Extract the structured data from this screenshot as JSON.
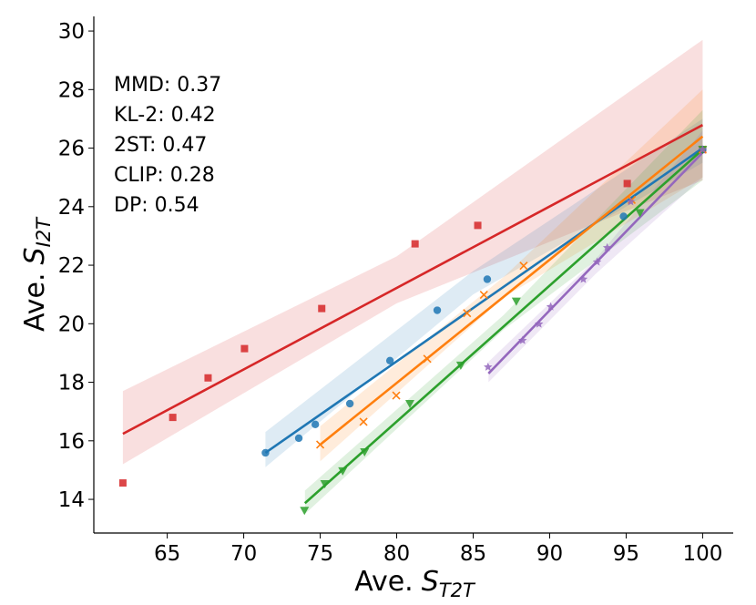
{
  "chart_data": {
    "type": "scatter",
    "xlabel": {
      "prefix": "Ave.",
      "symbol": "S",
      "subscript": "T2T"
    },
    "ylabel": {
      "prefix": "Ave.",
      "symbol": "S",
      "subscript": "I2T"
    },
    "annotations": [
      "MMD: 0.37",
      "KL-2: 0.42",
      "2ST: 0.47",
      "CLIP: 0.28",
      "DP: 0.54"
    ],
    "xlim": [
      60.2,
      102
    ],
    "ylim": [
      12.85,
      30.5
    ],
    "xticks": [
      65,
      70,
      75,
      80,
      85,
      90,
      95,
      100
    ],
    "yticks": [
      14,
      16,
      18,
      20,
      22,
      24,
      26,
      28,
      30
    ],
    "grid": false,
    "series": [
      {
        "color": "#d62728",
        "marker": "square",
        "x": [
          62.1,
          65.36,
          67.67,
          70.05,
          75.1,
          81.2,
          85.3,
          95.07,
          100
        ],
        "values": [
          14.56,
          16.8,
          18.15,
          19.15,
          20.52,
          22.73,
          23.36,
          24.79,
          25.95
        ],
        "fit_x": [
          62.1,
          100
        ],
        "fit_y": [
          16.24,
          26.79
        ],
        "ci_x": [
          62.1,
          80,
          100
        ],
        "ci_lower": [
          15.2,
          20.7,
          24.9
        ],
        "ci_upper": [
          17.7,
          22.3,
          29.7
        ]
      },
      {
        "color": "#1f77b4",
        "marker": "circle",
        "x": [
          71.42,
          73.6,
          74.68,
          76.94,
          79.56,
          82.65,
          85.92,
          94.83,
          100
        ],
        "values": [
          15.59,
          16.09,
          16.56,
          17.27,
          18.74,
          20.46,
          21.52,
          23.67,
          25.95
        ],
        "fit_x": [
          71.42,
          100
        ],
        "fit_y": [
          15.59,
          26.0
        ],
        "ci_x": [
          71.42,
          85,
          100
        ],
        "ci_lower": [
          15.1,
          21.0,
          25.5
        ],
        "ci_upper": [
          16.3,
          21.8,
          27.0
        ]
      },
      {
        "color": "#ff7f0e",
        "marker": "x",
        "x": [
          75,
          77.83,
          79.97,
          82,
          84.6,
          85.7,
          88.3,
          95.36,
          100
        ],
        "values": [
          15.87,
          16.65,
          17.55,
          18.8,
          20.36,
          20.99,
          21.98,
          24.23,
          25.95
        ],
        "fit_x": [
          75,
          100
        ],
        "fit_y": [
          15.87,
          26.4
        ],
        "ci_x": [
          75,
          87,
          100
        ],
        "ci_lower": [
          15.3,
          20.9,
          25.0
        ],
        "ci_upper": [
          16.5,
          21.6,
          28.0
        ]
      },
      {
        "color": "#2ca02c",
        "marker": "triangle_down",
        "x": [
          73.97,
          75.3,
          76.47,
          77.9,
          80.86,
          84.19,
          87.82,
          95.9,
          100
        ],
        "values": [
          13.62,
          14.53,
          14.97,
          15.62,
          17.27,
          18.58,
          20.77,
          23.79,
          25.95
        ],
        "fit_x": [
          74,
          100
        ],
        "fit_y": [
          13.87,
          25.95
        ],
        "ci_x": [
          74,
          87,
          100
        ],
        "ci_lower": [
          13.5,
          19.8,
          24.9
        ],
        "ci_upper": [
          14.3,
          20.3,
          27.3
        ]
      },
      {
        "color": "#9467bd",
        "marker": "star",
        "x": [
          85.97,
          88.23,
          89.3,
          90.07,
          92.2,
          93.1,
          93.76,
          95.3,
          100
        ],
        "values": [
          18.52,
          19.43,
          19.99,
          20.58,
          21.52,
          22.11,
          22.6,
          24.17,
          25.95
        ],
        "fit_x": [
          86,
          100
        ],
        "fit_y": [
          18.3,
          25.85
        ],
        "ci_x": [
          86,
          93,
          100
        ],
        "ci_lower": [
          18.0,
          21.7,
          25.0
        ],
        "ci_upper": [
          18.7,
          22.2,
          26.6
        ]
      }
    ]
  }
}
